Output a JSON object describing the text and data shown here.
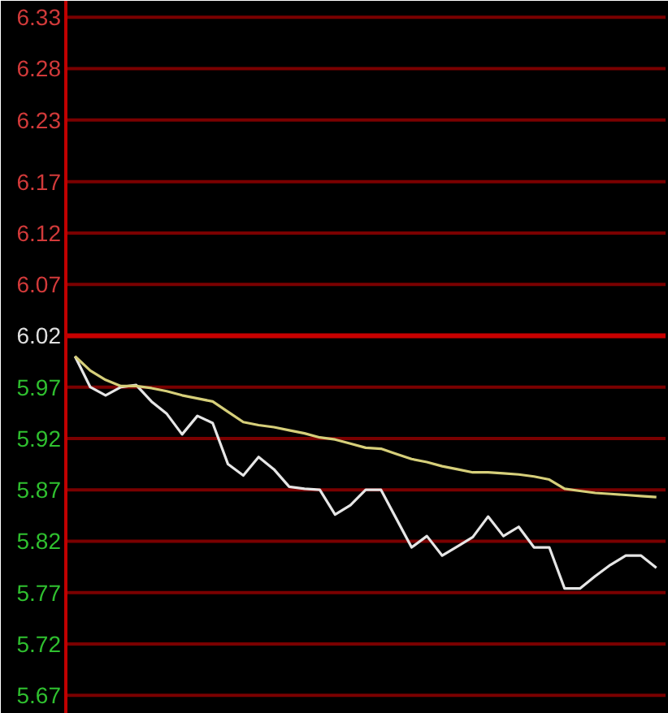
{
  "chart_data": {
    "type": "line",
    "categories": [
      null,
      null,
      null,
      null,
      null,
      null,
      null,
      null,
      null,
      null,
      null,
      null,
      null,
      null,
      null,
      null,
      null,
      null,
      null,
      null,
      null,
      null,
      null,
      null,
      null,
      null,
      null,
      null,
      null,
      null,
      null,
      null,
      null,
      null,
      null,
      null,
      null,
      null,
      null
    ],
    "series": [
      {
        "color": "#e6e6e6",
        "values": [
          6.0,
          5.97,
          5.962,
          5.97,
          5.972,
          5.956,
          5.944,
          5.924,
          5.942,
          5.935,
          5.895,
          5.884,
          5.902,
          5.89,
          5.873,
          5.871,
          5.87,
          5.846,
          5.855,
          5.87,
          5.87,
          5.842,
          5.814,
          5.825,
          5.806,
          5.815,
          5.824,
          5.844,
          5.825,
          5.834,
          5.814,
          5.814,
          5.774,
          5.774,
          5.786,
          5.797,
          5.806,
          5.806,
          5.794
        ]
      },
      {
        "color": "#d6cf7a",
        "values": [
          6.0,
          5.986,
          5.977,
          5.971,
          5.971,
          5.969,
          5.966,
          5.962,
          5.959,
          5.956,
          5.946,
          5.936,
          5.933,
          5.931,
          5.928,
          5.925,
          5.921,
          5.919,
          5.915,
          5.911,
          5.91,
          5.905,
          5.9,
          5.897,
          5.893,
          5.89,
          5.887,
          5.887,
          5.886,
          5.885,
          5.883,
          5.88,
          5.871,
          5.869,
          5.867,
          5.866,
          5.865,
          5.864,
          5.863
        ]
      }
    ],
    "ylim": [
      5.652,
      6.346
    ],
    "yticks": [
      5.67,
      5.72,
      5.77,
      5.82,
      5.87,
      5.92,
      5.97,
      6.02,
      6.07,
      6.12,
      6.17,
      6.23,
      6.28,
      6.33
    ],
    "ref_lines": [
      {
        "axis": "y",
        "value": 6.02,
        "color": "#c80000"
      }
    ],
    "grid": "y",
    "tick_labels": "y"
  }
}
